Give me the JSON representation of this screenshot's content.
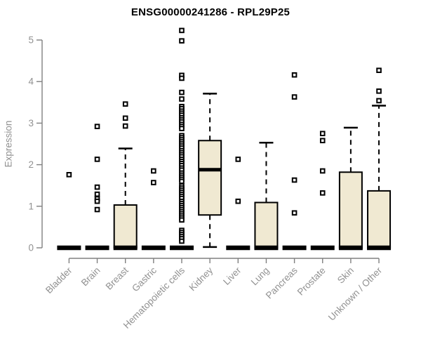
{
  "chart_data": {
    "type": "boxplot",
    "title": "ENSG00000241286 - RPL29P25",
    "ylabel": "Expression",
    "ylim": [
      0,
      5
    ],
    "yticks": [
      0,
      1,
      2,
      3,
      4,
      5
    ],
    "grid": false,
    "legend": "none",
    "categories": [
      "Bladder",
      "Brain",
      "Breast",
      "Gastric",
      "Hematopoietic cells",
      "Kidney",
      "Liver",
      "Lung",
      "Pancreas",
      "Prostate",
      "Skin",
      "Unknown / Other"
    ],
    "boxes": [
      {
        "category": "Bladder",
        "q1": 0,
        "median": 0,
        "q3": 0,
        "whisker_low": 0,
        "whisker_high": 0,
        "outliers": [
          1.76
        ]
      },
      {
        "category": "Brain",
        "q1": 0,
        "median": 0,
        "q3": 0,
        "whisker_low": 0,
        "whisker_high": 0,
        "outliers": [
          2.92,
          2.13,
          1.46,
          1.29,
          1.18,
          1.12,
          0.92
        ]
      },
      {
        "category": "Breast",
        "q1": 0,
        "median": 0,
        "q3": 1.03,
        "whisker_low": 0,
        "whisker_high": 2.39,
        "outliers": [
          3.46,
          3.12,
          2.93
        ]
      },
      {
        "category": "Gastric",
        "q1": 0,
        "median": 0,
        "q3": 0,
        "whisker_low": 0,
        "whisker_high": 0,
        "outliers": [
          1.85,
          1.57
        ]
      },
      {
        "category": "Hematopoietic cells",
        "q1": 0,
        "median": 0,
        "q3": 0,
        "whisker_low": 0,
        "whisker_high": 0,
        "outliers": [
          5.23,
          4.98,
          4.15,
          4.08,
          3.74,
          3.58,
          3.4,
          3.35,
          3.29,
          3.24,
          3.19,
          3.13,
          3.08,
          3.03,
          2.97,
          2.92,
          2.87,
          2.7,
          2.65,
          2.6,
          2.55,
          2.5,
          2.45,
          2.4,
          2.34,
          2.29,
          2.24,
          2.19,
          2.13,
          2.08,
          2.03,
          1.98,
          1.92,
          1.87,
          1.8,
          1.75,
          1.7,
          1.65,
          1.6,
          1.49,
          1.44,
          1.39,
          1.34,
          1.29,
          1.24,
          1.19,
          1.12,
          1.07,
          1.02,
          0.97,
          0.92,
          0.87,
          0.82,
          0.77,
          0.72,
          0.67,
          0.42,
          0.37,
          0.32,
          0.27,
          0.22,
          0.16
        ]
      },
      {
        "category": "Kidney",
        "q1": 0.79,
        "median": 1.88,
        "q3": 2.58,
        "whisker_low": 0.02,
        "whisker_high": 3.71,
        "outliers": []
      },
      {
        "category": "Liver",
        "q1": 0,
        "median": 0,
        "q3": 0,
        "whisker_low": 0,
        "whisker_high": 0,
        "outliers": [
          2.13,
          1.12
        ]
      },
      {
        "category": "Lung",
        "q1": 0,
        "median": 0,
        "q3": 1.09,
        "whisker_low": 0,
        "whisker_high": 2.53,
        "outliers": []
      },
      {
        "category": "Pancreas",
        "q1": 0,
        "median": 0,
        "q3": 0,
        "whisker_low": 0,
        "whisker_high": 0,
        "outliers": [
          4.16,
          3.63,
          1.63,
          0.84
        ]
      },
      {
        "category": "Prostate",
        "q1": 0,
        "median": 0,
        "q3": 0,
        "whisker_low": 0,
        "whisker_high": 0,
        "outliers": [
          2.75,
          2.58,
          1.85,
          1.32
        ]
      },
      {
        "category": "Skin",
        "q1": 0,
        "median": 0,
        "q3": 1.82,
        "whisker_low": 0,
        "whisker_high": 2.89,
        "outliers": []
      },
      {
        "category": "Unknown / Other",
        "q1": 0,
        "median": 0,
        "q3": 1.37,
        "whisker_low": 0,
        "whisker_high": 3.42,
        "outliers": [
          4.27,
          3.77,
          3.54
        ]
      }
    ],
    "colors": {
      "box_fill": "#F0E9D2",
      "box_stroke": "#000000",
      "median": "#000000",
      "whisker": "#000000",
      "outlier_stroke": "#000000",
      "outlier_fill": "#FFFFFF",
      "axis": "#808080",
      "tick_label": "#919191",
      "title": "#000000",
      "background": "#FFFFFF"
    }
  }
}
